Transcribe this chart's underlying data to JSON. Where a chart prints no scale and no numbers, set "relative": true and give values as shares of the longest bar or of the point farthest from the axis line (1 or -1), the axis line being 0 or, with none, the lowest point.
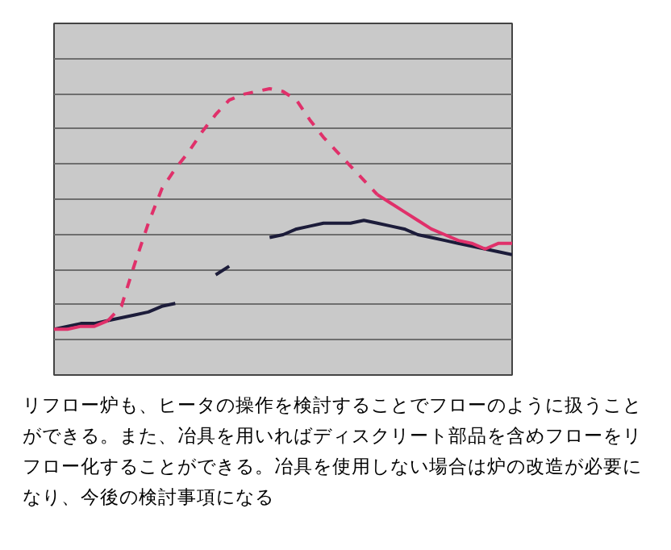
{
  "chart_data": {
    "type": "line",
    "relative": true,
    "grid": "y",
    "marker": "none",
    "categories": [
      null,
      null,
      null,
      null,
      null,
      null,
      null,
      null,
      null,
      null,
      null,
      null,
      null,
      null,
      null,
      null,
      null,
      null,
      null,
      null,
      null,
      null,
      null,
      null,
      null,
      null,
      null,
      null,
      null,
      null,
      null,
      null,
      null,
      null,
      null
    ],
    "series": [
      {
        "color": "#1c1c3a",
        "line_style": "solid",
        "values": [
          0.16,
          0.17,
          0.18,
          0.18,
          0.19,
          0.2,
          0.21,
          0.22,
          0.24,
          0.25,
          null,
          null,
          0.35,
          0.38,
          null,
          null,
          0.48,
          0.49,
          0.51,
          0.52,
          0.53,
          0.53,
          0.53,
          0.54,
          0.53,
          0.52,
          0.51,
          0.49,
          0.48,
          0.47,
          0.46,
          0.45,
          0.44,
          0.43,
          0.42
        ]
      },
      {
        "color": "#e0306a",
        "line_style": "solid",
        "values": [
          0.16,
          0.16,
          0.17,
          0.17,
          0.19,
          null,
          null,
          null,
          null,
          null,
          null,
          null,
          null,
          null,
          null,
          null,
          null,
          null,
          null,
          null,
          null,
          null,
          null,
          null,
          0.63,
          0.6,
          0.57,
          0.54,
          0.51,
          0.49,
          0.47,
          0.46,
          0.44,
          0.46,
          0.46
        ]
      },
      {
        "color": "#e0306a",
        "line_style": "dashed",
        "values": [
          null,
          null,
          null,
          null,
          0.19,
          0.24,
          0.39,
          0.53,
          0.65,
          0.72,
          0.78,
          0.85,
          0.91,
          0.96,
          0.98,
          0.99,
          1,
          0.99,
          0.96,
          0.89,
          0.83,
          0.78,
          0.73,
          0.68,
          0.63,
          null,
          null,
          null,
          null,
          null,
          null,
          null,
          null,
          null,
          null
        ]
      }
    ],
    "annotations": [
      "リフロー炉も、ヒータの操作を検討することでフローのように扱うことができる。また、冶具を用いればディスクリート部品を含めフローをリフロー化することができる。冶具を使用しない場合は炉の改造が必要になり、今後の検討事項になる"
    ]
  }
}
